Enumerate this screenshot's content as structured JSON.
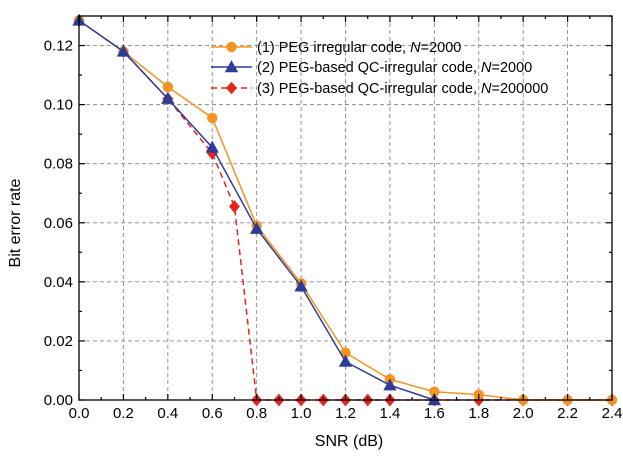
{
  "chart_data": {
    "type": "line",
    "title": "",
    "xlabel": "SNR (dB)",
    "ylabel": "Bit error rate",
    "xlim": [
      0.0,
      2.4
    ],
    "ylim": [
      0.0,
      0.13
    ],
    "xticks": [
      "0.0",
      "0.2",
      "0.4",
      "0.6",
      "0.8",
      "1.0",
      "1.2",
      "1.4",
      "1.6",
      "1.8",
      "2.0",
      "2.2",
      "2.4"
    ],
    "yticks": [
      "0.00",
      "0.02",
      "0.04",
      "0.06",
      "0.08",
      "0.10",
      "0.12"
    ],
    "grid": true,
    "legend_position": "top-right",
    "series": [
      {
        "name": "(1) PEG irregular code, N=2000",
        "label_prefix": "(1) PEG irregular code, ",
        "label_italic": "N",
        "label_suffix": "=2000",
        "color": "#F39322",
        "marker": "circle",
        "line": "solid",
        "points": [
          [
            0.0,
            0.1285
          ],
          [
            0.2,
            0.118
          ],
          [
            0.4,
            0.106
          ],
          [
            0.6,
            0.0955
          ],
          [
            0.8,
            0.059
          ],
          [
            1.0,
            0.0395
          ],
          [
            1.2,
            0.016
          ],
          [
            1.4,
            0.007
          ],
          [
            1.6,
            0.0028
          ],
          [
            1.8,
            0.0018
          ],
          [
            2.0,
            0.0
          ],
          [
            2.2,
            0.0
          ],
          [
            2.4,
            0.0
          ]
        ]
      },
      {
        "name": "(2) PEG-based QC-irregular code, N=2000",
        "label_prefix": "(2) PEG-based QC-irregular code, ",
        "label_italic": "N",
        "label_suffix": "=2000",
        "color": "#2E3C95",
        "marker": "triangle",
        "line": "solid",
        "points": [
          [
            0.0,
            0.1285
          ],
          [
            0.2,
            0.118
          ],
          [
            0.4,
            0.102
          ],
          [
            0.6,
            0.0855
          ],
          [
            0.8,
            0.058
          ],
          [
            1.0,
            0.0385
          ],
          [
            1.2,
            0.013
          ],
          [
            1.4,
            0.005
          ],
          [
            1.6,
            0.0
          ]
        ]
      },
      {
        "name": "(3) PEG-based QC-irregular code, N=200000",
        "label_prefix": "(3) PEG-based QC-irregular code, ",
        "label_italic": "N",
        "label_suffix": "=200000",
        "color": "#E8241E",
        "marker": "diamond",
        "line": "dashed",
        "points": [
          [
            0.0,
            0.1285
          ],
          [
            0.2,
            0.118
          ],
          [
            0.4,
            0.102
          ],
          [
            0.6,
            0.0835
          ],
          [
            0.7,
            0.0655
          ],
          [
            0.8,
            0.0
          ],
          [
            0.9,
            0.0
          ],
          [
            1.0,
            0.0
          ],
          [
            1.1,
            0.0
          ],
          [
            1.2,
            0.0
          ],
          [
            1.3,
            0.0
          ],
          [
            1.4,
            0.0
          ],
          [
            1.6,
            0.0
          ],
          [
            1.8,
            0.0
          ],
          [
            2.0,
            0.0
          ],
          [
            2.2,
            0.0
          ],
          [
            2.4,
            0.0
          ]
        ]
      }
    ]
  }
}
